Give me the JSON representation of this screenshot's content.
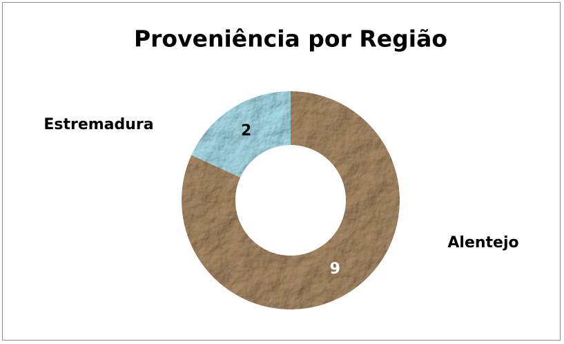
{
  "chart_data": {
    "type": "donut",
    "title": "Proveniência por Região",
    "categories": [
      "Alentejo",
      "Estremadura"
    ],
    "values": [
      9,
      2
    ],
    "colors": [
      "#a98a66",
      "#a9dde9"
    ]
  }
}
